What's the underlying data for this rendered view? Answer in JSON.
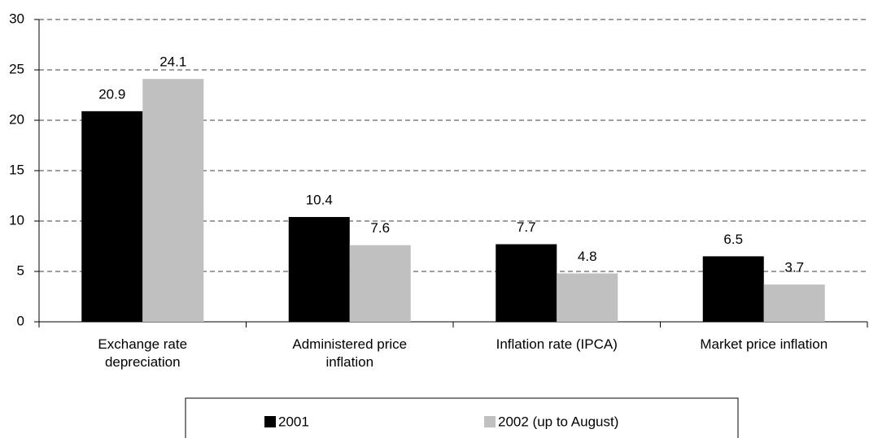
{
  "chart_data": {
    "type": "bar",
    "categories": [
      "Exchange rate depreciation",
      "Administered price inflation",
      "Inflation rate (IPCA)",
      "Market price inflation"
    ],
    "series": [
      {
        "name": "2001",
        "color": "#000000",
        "values": [
          20.9,
          10.4,
          7.7,
          6.5
        ]
      },
      {
        "name": "2002 (up to August)",
        "color": "#c0c0c0",
        "values": [
          24.1,
          7.6,
          4.8,
          3.7
        ]
      }
    ],
    "ylim": [
      0,
      30
    ],
    "yticks": [
      0,
      5,
      10,
      15,
      20,
      25,
      30
    ],
    "grid": true,
    "legend": "bottom"
  }
}
